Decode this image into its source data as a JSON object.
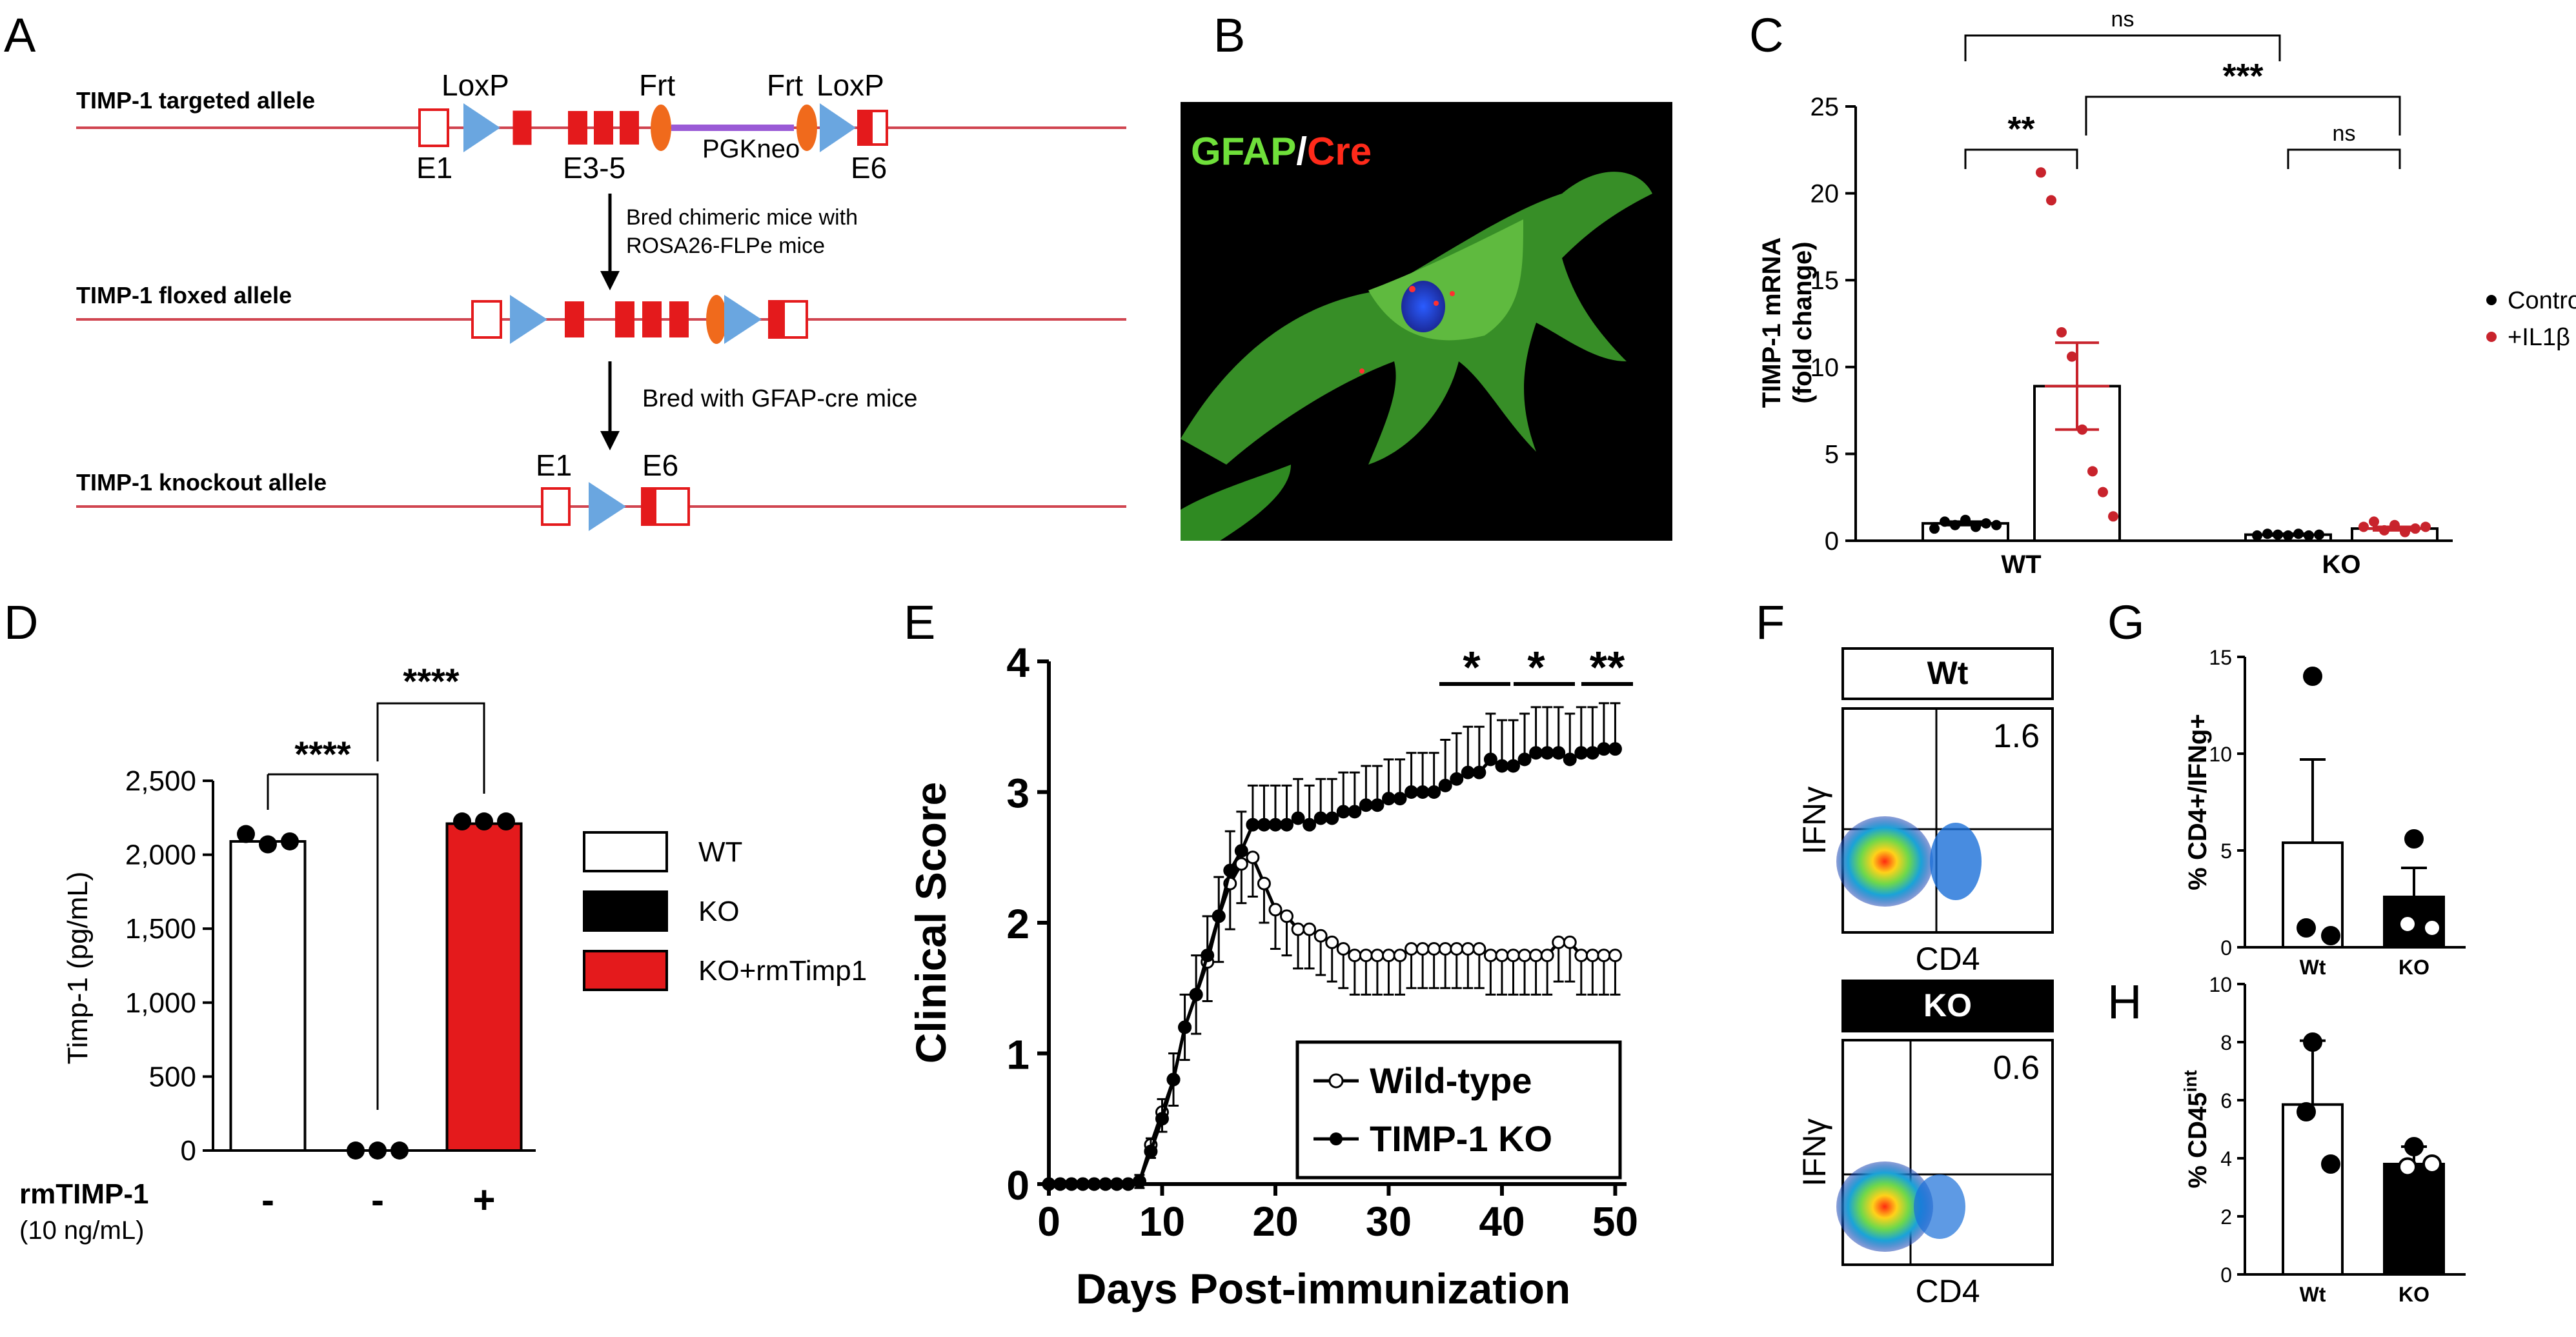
{
  "panel_letters": [
    "A",
    "B",
    "C",
    "D",
    "E",
    "F",
    "G",
    "H"
  ],
  "colors": {
    "red": "#e41a1c",
    "blue": "#6aa6e0",
    "orange": "#f06a1c",
    "purple": "#9a5ad6",
    "line": "#d04550",
    "green": "#2fa52f",
    "ctrl": "#000000",
    "il1b": "#c8232c"
  },
  "panelA": {
    "targeted_label": "TIMP-1 targeted allele",
    "floxed_label": "TIMP-1 floxed allele",
    "knockout_label": "TIMP-1 knockout allele",
    "loxp": "LoxP",
    "frt": "Frt",
    "pgkneo": "PGKneo",
    "e1": "E1",
    "e35": "E3-5",
    "e6": "E6",
    "step1_line1": "Bred chimeric mice with",
    "step1_line2": "ROSA26-FLPe mice",
    "step2": "Bred with GFAP-cre mice"
  },
  "panelB": {
    "gfap": "GFAP",
    "slash": "/",
    "cre": "Cre"
  },
  "chart_data": [
    {
      "panel": "C",
      "type": "bar",
      "ylabel_line1": "TIMP-1 mRNA",
      "ylabel_line2": "(fold change)",
      "ylim": [
        0,
        25
      ],
      "yticks": [
        "0",
        "5",
        "10",
        "15",
        "20",
        "25"
      ],
      "categories": [
        "WT",
        "KO"
      ],
      "series": [
        {
          "name": "Control",
          "means": [
            1.0,
            0.35
          ],
          "sem": [
            0.1,
            0.05
          ],
          "points": [
            [
              0.7,
              1.1,
              0.9,
              1.2,
              0.8,
              1.0,
              0.9
            ],
            [
              0.3,
              0.4,
              0.35,
              0.3,
              0.4,
              0.3,
              0.35
            ]
          ]
        },
        {
          "name": "+IL1β",
          "means": [
            8.9,
            0.7
          ],
          "sem": [
            2.5,
            0.1
          ],
          "points": [
            [
              21.2,
              19.6,
              12.0,
              10.6,
              6.4,
              4.0,
              2.8,
              1.4
            ],
            [
              0.8,
              1.1,
              0.6,
              0.9,
              0.5,
              0.7,
              0.8
            ]
          ]
        }
      ],
      "significance": [
        {
          "label": "**",
          "between": "WT Control vs WT +IL1β"
        },
        {
          "label": "***",
          "between": "WT +IL1β vs KO +IL1β"
        },
        {
          "label": "ns",
          "between": "WT Control vs KO Control"
        },
        {
          "label": "ns",
          "between": "KO Control vs KO +IL1β"
        }
      ],
      "legend": [
        "Control",
        "+IL1β"
      ]
    },
    {
      "panel": "D",
      "type": "bar",
      "ylabel": "Timp-1 (pg/mL)",
      "ylim": [
        0,
        2500
      ],
      "yticks": [
        "0",
        "500",
        "1,000",
        "1,500",
        "2,000",
        "2,500"
      ],
      "categories": [
        "WT",
        "KO",
        "KO+rmTimp1"
      ],
      "values": [
        2090,
        0,
        2210
      ],
      "points": [
        [
          2140,
          2070,
          2090
        ],
        [
          0,
          0,
          0
        ],
        [
          2225,
          2225,
          2225
        ]
      ],
      "xrow_label": "rmTIMP-1",
      "xrow_sublabel": "(10 ng/mL)",
      "xrow_values": [
        "-",
        "-",
        "+"
      ],
      "significance": [
        "****",
        "****"
      ],
      "legend": [
        "WT",
        "KO",
        "KO+rmTimp1"
      ]
    },
    {
      "panel": "E",
      "type": "line",
      "xlabel": "Days Post-immunization",
      "ylabel": "Clinical Score",
      "xlim": [
        0,
        51
      ],
      "ylim": [
        0,
        4
      ],
      "xticks": [
        "0",
        "10",
        "20",
        "30",
        "40",
        "50"
      ],
      "yticks": [
        "0",
        "1",
        "2",
        "3",
        "4"
      ],
      "x": [
        0,
        1,
        2,
        3,
        4,
        5,
        6,
        7,
        8,
        9,
        10,
        11,
        12,
        13,
        14,
        15,
        16,
        17,
        18,
        19,
        20,
        21,
        22,
        23,
        24,
        25,
        26,
        27,
        28,
        29,
        30,
        31,
        32,
        33,
        34,
        35,
        36,
        37,
        38,
        39,
        40,
        41,
        42,
        43,
        44,
        45,
        46,
        47,
        48,
        49,
        50
      ],
      "series": [
        {
          "name": "Wild-type",
          "values": [
            0,
            0,
            0,
            0,
            0,
            0,
            0,
            0,
            0.02,
            0.3,
            0.55,
            0.8,
            1.2,
            1.45,
            1.7,
            2.05,
            2.3,
            2.45,
            2.5,
            2.3,
            2.1,
            2.05,
            1.95,
            1.95,
            1.9,
            1.85,
            1.8,
            1.75,
            1.75,
            1.75,
            1.75,
            1.75,
            1.8,
            1.8,
            1.8,
            1.8,
            1.8,
            1.8,
            1.8,
            1.75,
            1.75,
            1.75,
            1.75,
            1.75,
            1.75,
            1.85,
            1.85,
            1.75,
            1.75,
            1.75,
            1.75
          ],
          "sem": [
            0,
            0,
            0,
            0,
            0,
            0,
            0,
            0,
            0.05,
            0.1,
            0.15,
            0.2,
            0.25,
            0.3,
            0.3,
            0.35,
            0.35,
            0.3,
            0.3,
            0.3,
            0.3,
            0.3,
            0.3,
            0.3,
            0.3,
            0.3,
            0.3,
            0.3,
            0.3,
            0.3,
            0.3,
            0.3,
            0.3,
            0.3,
            0.3,
            0.3,
            0.3,
            0.3,
            0.3,
            0.3,
            0.3,
            0.3,
            0.3,
            0.3,
            0.3,
            0.3,
            0.3,
            0.3,
            0.3,
            0.3,
            0.3
          ]
        },
        {
          "name": "TIMP-1 KO",
          "values": [
            0,
            0,
            0,
            0,
            0,
            0,
            0,
            0,
            0.02,
            0.25,
            0.5,
            0.8,
            1.2,
            1.45,
            1.75,
            2.05,
            2.4,
            2.55,
            2.75,
            2.75,
            2.75,
            2.75,
            2.8,
            2.75,
            2.8,
            2.8,
            2.85,
            2.85,
            2.9,
            2.9,
            2.95,
            2.95,
            3.0,
            3.0,
            3.0,
            3.05,
            3.1,
            3.15,
            3.15,
            3.25,
            3.2,
            3.2,
            3.25,
            3.3,
            3.3,
            3.3,
            3.25,
            3.3,
            3.3,
            3.33,
            3.33
          ],
          "sem": [
            0,
            0,
            0,
            0,
            0,
            0,
            0,
            0,
            0.05,
            0.1,
            0.15,
            0.2,
            0.25,
            0.3,
            0.3,
            0.3,
            0.3,
            0.3,
            0.3,
            0.3,
            0.3,
            0.3,
            0.3,
            0.3,
            0.3,
            0.3,
            0.3,
            0.3,
            0.3,
            0.3,
            0.3,
            0.3,
            0.3,
            0.3,
            0.3,
            0.35,
            0.35,
            0.35,
            0.35,
            0.35,
            0.35,
            0.35,
            0.35,
            0.35,
            0.35,
            0.35,
            0.35,
            0.35,
            0.35,
            0.35,
            0.35
          ]
        }
      ],
      "significance": [
        "*",
        "*",
        "**"
      ],
      "legend": [
        "Wild-type",
        "TIMP-1 KO"
      ]
    },
    {
      "panel": "F",
      "type": "scatter",
      "plots": [
        {
          "title": "Wt",
          "percent": "1.6",
          "xlabel": "CD4",
          "ylabel": "IFNγ"
        },
        {
          "title": "KO",
          "percent": "0.6",
          "xlabel": "CD4",
          "ylabel": "IFNγ"
        }
      ]
    },
    {
      "panel": "G",
      "type": "bar",
      "ylabel": "% CD4+/IFNg+",
      "ylim": [
        0,
        15
      ],
      "yticks": [
        "0",
        "5",
        "10",
        "15"
      ],
      "categories": [
        "Wt",
        "KO"
      ],
      "values": [
        5.4,
        2.6
      ],
      "sem": [
        4.3,
        1.5
      ],
      "points": [
        [
          14.0,
          1.0,
          0.6
        ],
        [
          5.6,
          1.2,
          1.0
        ]
      ]
    },
    {
      "panel": "H",
      "type": "bar",
      "ylabel": "% CD45",
      "ylabel_sup": "int",
      "ylim": [
        0,
        10
      ],
      "yticks": [
        "0",
        "2",
        "4",
        "6",
        "8",
        "10"
      ],
      "categories": [
        "Wt",
        "KO"
      ],
      "values": [
        5.85,
        3.8
      ],
      "sd": [
        2.2,
        0.6
      ],
      "points": [
        [
          8.0,
          5.6,
          3.8
        ],
        [
          4.4,
          3.7,
          3.8
        ]
      ]
    }
  ]
}
